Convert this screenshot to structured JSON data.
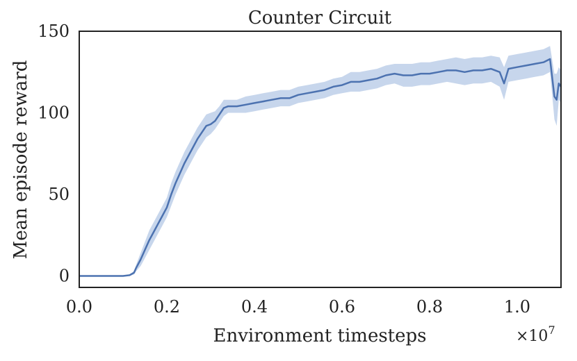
{
  "chart_data": {
    "type": "line",
    "title": "Counter Circuit",
    "xlabel": "Environment timesteps",
    "ylabel": "Mean episode reward",
    "x_offset_text": "×10",
    "x_offset_exponent": "7",
    "xlim": [
      0.0,
      1.1
    ],
    "ylim": [
      -7,
      150
    ],
    "x_ticks": [
      "0.0",
      "0.2",
      "0.4",
      "0.6",
      "0.8",
      "1.0"
    ],
    "x_tick_values": [
      0.0,
      0.2,
      0.4,
      0.6,
      0.8,
      1.0
    ],
    "y_ticks": [
      "0",
      "50",
      "100",
      "150"
    ],
    "y_tick_values": [
      0,
      50,
      100,
      150
    ],
    "grid": false,
    "legend": "none",
    "colors": {
      "line": "#4c72b0",
      "band": "#c7d6ec",
      "frame": "#222222"
    },
    "series": [
      {
        "x": [
          0.0,
          0.05,
          0.1,
          0.115,
          0.125,
          0.13,
          0.14,
          0.15,
          0.16,
          0.17,
          0.18,
          0.19,
          0.2,
          0.21,
          0.22,
          0.23,
          0.24,
          0.25,
          0.26,
          0.27,
          0.28,
          0.29,
          0.3,
          0.31,
          0.32,
          0.33,
          0.34,
          0.36,
          0.38,
          0.4,
          0.42,
          0.44,
          0.46,
          0.48,
          0.5,
          0.52,
          0.54,
          0.56,
          0.58,
          0.6,
          0.62,
          0.64,
          0.66,
          0.68,
          0.7,
          0.72,
          0.74,
          0.76,
          0.78,
          0.8,
          0.82,
          0.84,
          0.86,
          0.88,
          0.9,
          0.92,
          0.94,
          0.96,
          0.97,
          0.98,
          1.0,
          1.02,
          1.04,
          1.06,
          1.075,
          1.085,
          1.09,
          1.095,
          1.1
        ],
        "values": [
          0,
          0,
          0,
          0.5,
          2,
          5,
          10,
          16,
          22,
          27,
          32,
          37,
          42,
          50,
          57,
          63,
          69,
          74,
          79,
          84,
          88,
          92,
          93,
          95,
          99,
          103,
          104,
          104,
          105,
          106,
          107,
          108,
          109,
          109,
          111,
          112,
          113,
          114,
          116,
          117,
          119,
          119,
          120,
          121,
          123,
          124,
          123,
          123,
          124,
          124,
          125,
          126,
          126,
          125,
          126,
          126,
          127,
          125,
          118,
          127,
          128,
          129,
          130,
          131,
          133,
          110,
          108,
          118,
          116
        ],
        "lower": [
          0,
          0,
          0,
          0,
          1,
          3,
          6,
          11,
          16,
          21,
          26,
          31,
          36,
          43,
          50,
          56,
          62,
          67,
          72,
          77,
          81,
          85,
          87,
          90,
          94,
          98,
          100,
          100,
          100,
          101,
          102,
          103,
          104,
          104,
          106,
          107,
          108,
          109,
          111,
          112,
          113,
          113,
          114,
          115,
          117,
          118,
          116,
          116,
          117,
          117,
          118,
          119,
          118,
          117,
          118,
          118,
          119,
          116,
          108,
          119,
          120,
          121,
          122,
          123,
          125,
          96,
          92,
          108,
          106
        ],
        "upper": [
          0,
          0,
          0,
          1,
          3,
          7,
          14,
          21,
          28,
          33,
          38,
          43,
          48,
          57,
          64,
          70,
          76,
          81,
          86,
          91,
          95,
          99,
          100,
          101,
          104,
          108,
          108,
          108,
          110,
          111,
          112,
          113,
          114,
          114,
          116,
          117,
          118,
          119,
          121,
          122,
          125,
          125,
          126,
          127,
          129,
          130,
          130,
          130,
          131,
          131,
          132,
          133,
          134,
          133,
          134,
          134,
          135,
          134,
          128,
          135,
          136,
          137,
          138,
          139,
          141,
          124,
          124,
          128,
          126
        ]
      }
    ]
  }
}
